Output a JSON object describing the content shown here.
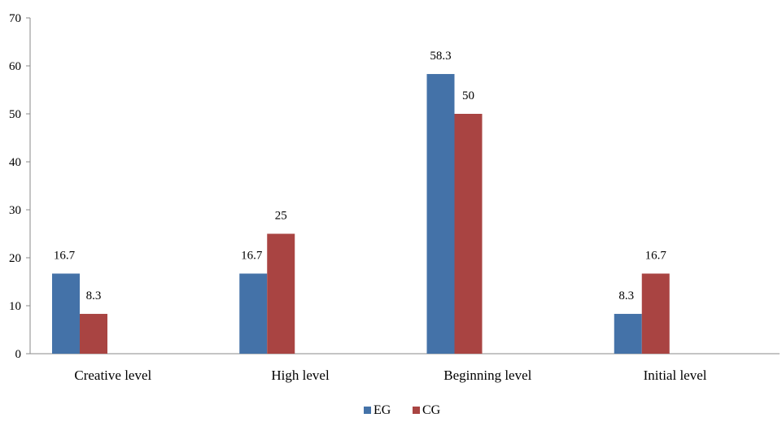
{
  "chart_data": {
    "type": "bar",
    "categories": [
      "Creative level",
      "High level",
      "Beginning level",
      "Initial level"
    ],
    "series": [
      {
        "name": "EG",
        "values": [
          16.7,
          16.7,
          58.3,
          8.3
        ],
        "labels": [
          "16.7",
          "16.7",
          "58.3",
          "8.3"
        ],
        "color": "#4472a8"
      },
      {
        "name": "CG",
        "values": [
          8.3,
          25,
          50,
          16.7
        ],
        "labels": [
          "8.3",
          "25",
          "50",
          "16.7"
        ],
        "color": "#a94442"
      }
    ],
    "ylim": [
      0,
      70
    ],
    "yticks": [
      0,
      10,
      20,
      30,
      40,
      50,
      60,
      70
    ],
    "grid": false,
    "legend_position": "bottom"
  }
}
